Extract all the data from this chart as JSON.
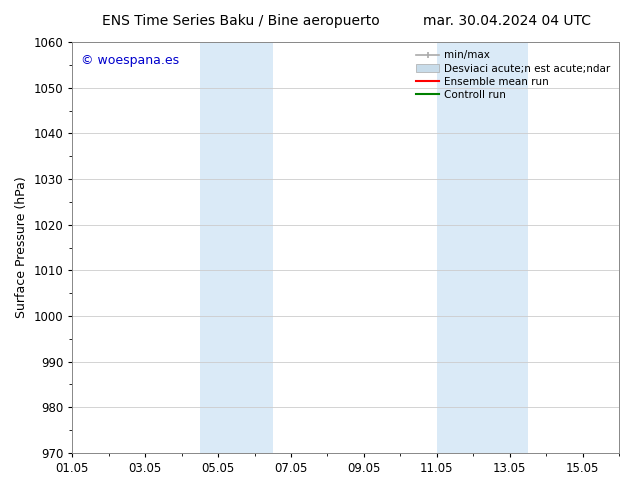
{
  "title_left": "ENS Time Series Baku / Bine aeropuerto",
  "title_right": "mar. 30.04.2024 04 UTC",
  "ylabel": "Surface Pressure (hPa)",
  "ylim": [
    970,
    1060
  ],
  "yticks": [
    970,
    980,
    990,
    1000,
    1010,
    1020,
    1030,
    1040,
    1050,
    1060
  ],
  "xlim": [
    0,
    15
  ],
  "xtick_labels": [
    "01.05",
    "03.05",
    "05.05",
    "07.05",
    "09.05",
    "11.05",
    "13.05",
    "15.05"
  ],
  "xtick_positions": [
    0,
    2,
    4,
    6,
    8,
    10,
    12,
    14
  ],
  "shaded_regions": [
    {
      "start": 3.5,
      "end": 5.5,
      "color": "#daeaf7"
    },
    {
      "start": 10.0,
      "end": 12.5,
      "color": "#daeaf7"
    }
  ],
  "watermark_text": "© woespana.es",
  "watermark_color": "#0000cc",
  "watermark_fontsize": 9,
  "legend_labels": [
    "min/max",
    "Desviaci acute;n est acute;ndar",
    "Ensemble mean run",
    "Controll run"
  ],
  "legend_colors": [
    "#aaaaaa",
    "#c8dcea",
    "red",
    "green"
  ],
  "background_color": "#ffffff",
  "grid_color": "#cccccc",
  "title_fontsize": 10,
  "axis_label_fontsize": 9,
  "tick_fontsize": 8.5,
  "legend_fontsize": 7.5
}
